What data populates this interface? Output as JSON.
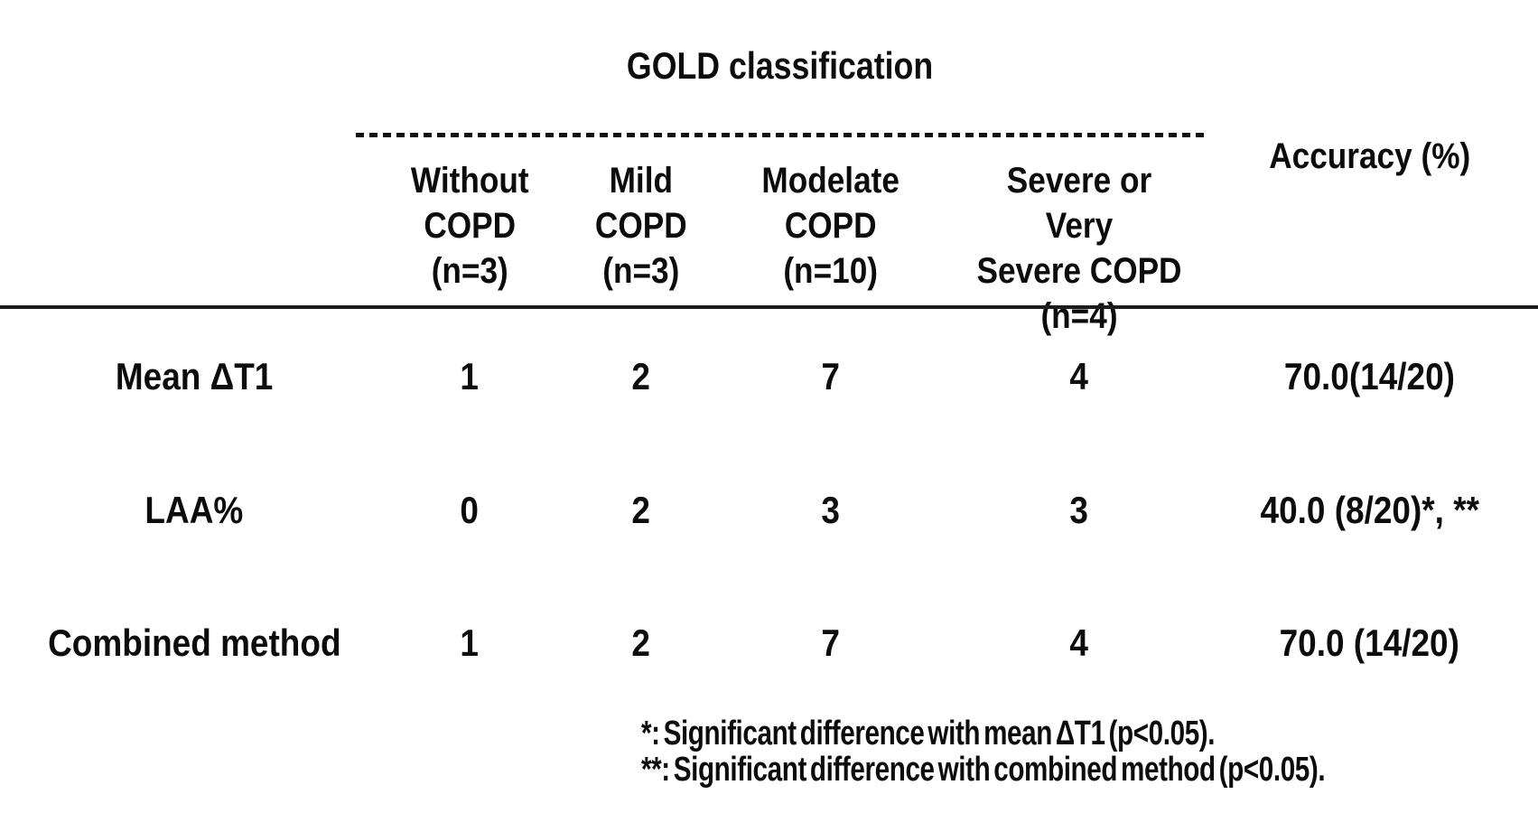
{
  "figure": {
    "group_title": "GOLD classification",
    "accuracy_header": "Accuracy (%)",
    "columns": [
      "Without\nCOPD\n(n=3)",
      "Mild\nCOPD\n(n=3)",
      "Modelate\nCOPD\n(n=10)",
      "Severe or Very\nSevere COPD\n(n=4)"
    ],
    "rows": [
      {
        "label": "Mean ΔT1",
        "values": [
          "1",
          "2",
          "7",
          "4"
        ],
        "accuracy": "70.0(14/20)"
      },
      {
        "label": "LAA%",
        "values": [
          "0",
          "2",
          "3",
          "3"
        ],
        "accuracy": "40.0 (8/20)*, **"
      },
      {
        "label": "Combined method",
        "values": [
          "1",
          "2",
          "7",
          "4"
        ],
        "accuracy": "70.0 (14/20)"
      }
    ],
    "footnotes": [
      "*: Significant difference with mean ΔT1 (p<0.05).",
      "**: Significant difference with combined method (p<0.05)."
    ],
    "colors": {
      "text": "#0c0c0c",
      "rule": "#1b1b1b",
      "background": "#ffffff"
    }
  },
  "chart_data": {
    "type": "table",
    "title": "GOLD classification",
    "row_header": [
      "Mean ΔT1",
      "LAA%",
      "Combined method"
    ],
    "column_header": [
      "Without COPD (n=3)",
      "Mild COPD (n=3)",
      "Modelate COPD (n=10)",
      "Severe or Very Severe COPD (n=4)",
      "Accuracy (%)"
    ],
    "cells": [
      [
        "1",
        "2",
        "7",
        "4",
        "70.0(14/20)"
      ],
      [
        "0",
        "2",
        "3",
        "3",
        "40.0 (8/20)*, **"
      ],
      [
        "1",
        "2",
        "7",
        "4",
        "70.0 (14/20)"
      ]
    ],
    "notes": [
      "*: Significant difference with mean ΔT1 (p<0.05).",
      "**: Significant difference with combined method (p<0.05)."
    ]
  }
}
